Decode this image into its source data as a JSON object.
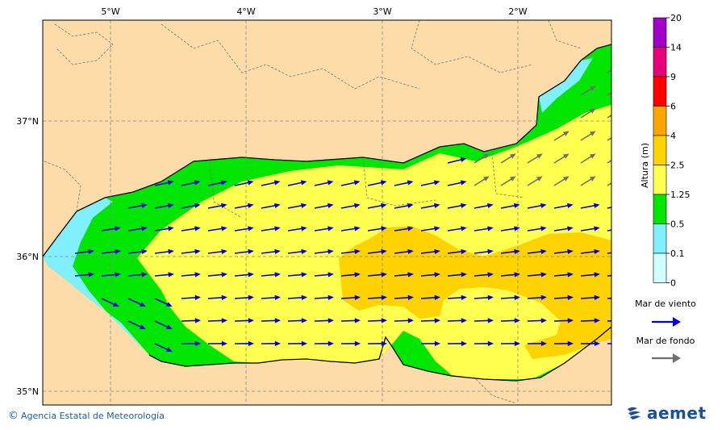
{
  "longitude_labels": [
    "5°W",
    "4°W",
    "3°W",
    "2°W"
  ],
  "latitude_labels": [
    "37°N",
    "36°N",
    "35°N"
  ],
  "legend": {
    "title": "Altura (m)",
    "ticks": [
      "20",
      "14",
      "9",
      "6",
      "4",
      "2.5",
      "1.25",
      "0.5",
      "0.1",
      "0"
    ],
    "colors": [
      "#a000c8",
      "#e6007a",
      "#ff0000",
      "#ffa500",
      "#ffd200",
      "#ffff50",
      "#00e600",
      "#80f0ff",
      "#d0ffff"
    ]
  },
  "arrows_legend": {
    "wind_sea": "Mar de viento",
    "wind_sea_color": "#0000dd",
    "swell": "Mar de fondo",
    "swell_color": "#707070"
  },
  "credit": "Agencia Estatal de Meteorología",
  "logo": "aemet"
}
